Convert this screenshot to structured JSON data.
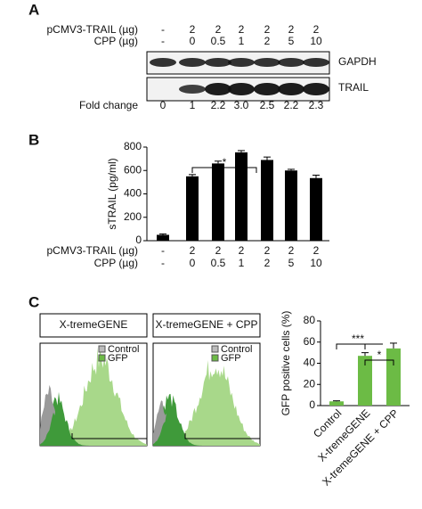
{
  "panel_a": {
    "label": "A",
    "rows": [
      {
        "name": "pCMV3-TRAIL (µg)",
        "labels": [
          "-",
          "2",
          "2",
          "2",
          "2",
          "2",
          "2"
        ]
      },
      {
        "name": "CPP (µg)",
        "labels": [
          "-",
          "0",
          "0.5",
          "1",
          "2",
          "5",
          "10"
        ]
      }
    ],
    "blots": [
      "GAPDH",
      "TRAIL"
    ],
    "fold_change": {
      "name": "Fold change",
      "values": [
        "0",
        "1",
        "2.2",
        "3.0",
        "2.5",
        "2.2",
        "2.3"
      ]
    }
  },
  "panel_c": {
    "label": "C",
    "histograms": [
      "X-tremeGENE",
      "X-tremeGENE + CPP"
    ],
    "legend": [
      "Control",
      "GFP"
    ]
  },
  "chart_data": [
    {
      "type": "bar",
      "label": "B",
      "ylabel": "sTRAIL (pg/ml)",
      "color": "#000000",
      "categories": [
        null,
        null,
        null,
        null,
        null,
        null,
        null
      ],
      "values": [
        50,
        550,
        660,
        755,
        690,
        600,
        535
      ],
      "errors": [
        8,
        15,
        20,
        15,
        25,
        10,
        25
      ],
      "ylim": [
        0,
        800
      ],
      "yticks": [
        0,
        200,
        400,
        600,
        800
      ],
      "rows": [
        {
          "name": "pCMV3-TRAIL (µg)",
          "labels": [
            "-",
            "2",
            "2",
            "2",
            "2",
            "2",
            "2"
          ]
        },
        {
          "name": "CPP (µg)",
          "labels": [
            "-",
            "0",
            "0.5",
            "1",
            "2",
            "5",
            "10"
          ]
        }
      ],
      "annotations": [
        "*"
      ]
    },
    {
      "type": "bar",
      "ylabel": "GFP positive cells (%)",
      "color": "#6cbb45",
      "categories": [
        "Control",
        "X-tremeGENE",
        "X-tremeGENE + CPP"
      ],
      "values": [
        4,
        47,
        54
      ],
      "errors": [
        0.5,
        3,
        5
      ],
      "ylim": [
        0,
        80
      ],
      "yticks": [
        0,
        20,
        40,
        60,
        80
      ],
      "annotations": [
        "***",
        "*"
      ]
    }
  ]
}
